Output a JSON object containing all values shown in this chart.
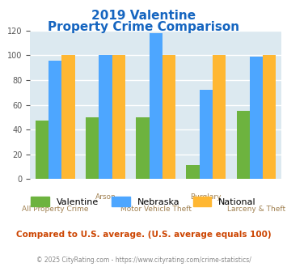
{
  "title_line1": "2019 Valentine",
  "title_line2": "Property Crime Comparison",
  "title_color": "#1565C0",
  "categories": [
    "All Property Crime",
    "Arson",
    "Motor Vehicle Theft",
    "Burglary",
    "Larceny & Theft"
  ],
  "upper_labels": [
    "",
    "Arson",
    "",
    "Burglary",
    ""
  ],
  "lower_labels": [
    "All Property Crime",
    "",
    "Motor Vehicle Theft",
    "",
    "Larceny & Theft"
  ],
  "valentine": [
    47,
    50,
    50,
    11,
    55
  ],
  "nebraska": [
    96,
    100,
    118,
    72,
    99
  ],
  "national": [
    100,
    100,
    100,
    100,
    100
  ],
  "valentine_color": "#6db33f",
  "nebraska_color": "#4da6ff",
  "national_color": "#ffb732",
  "ylim": [
    0,
    120
  ],
  "yticks": [
    0,
    20,
    40,
    60,
    80,
    100,
    120
  ],
  "background_color": "#dce9f0",
  "grid_color": "#ffffff",
  "xlabel_color": "#a08050",
  "footer_text": "Compared to U.S. average. (U.S. average equals 100)",
  "footer_color": "#cc4400",
  "credit_text": "© 2025 CityRating.com - https://www.cityrating.com/crime-statistics/",
  "credit_color": "#888888",
  "legend_labels": [
    "Valentine",
    "Nebraska",
    "National"
  ]
}
